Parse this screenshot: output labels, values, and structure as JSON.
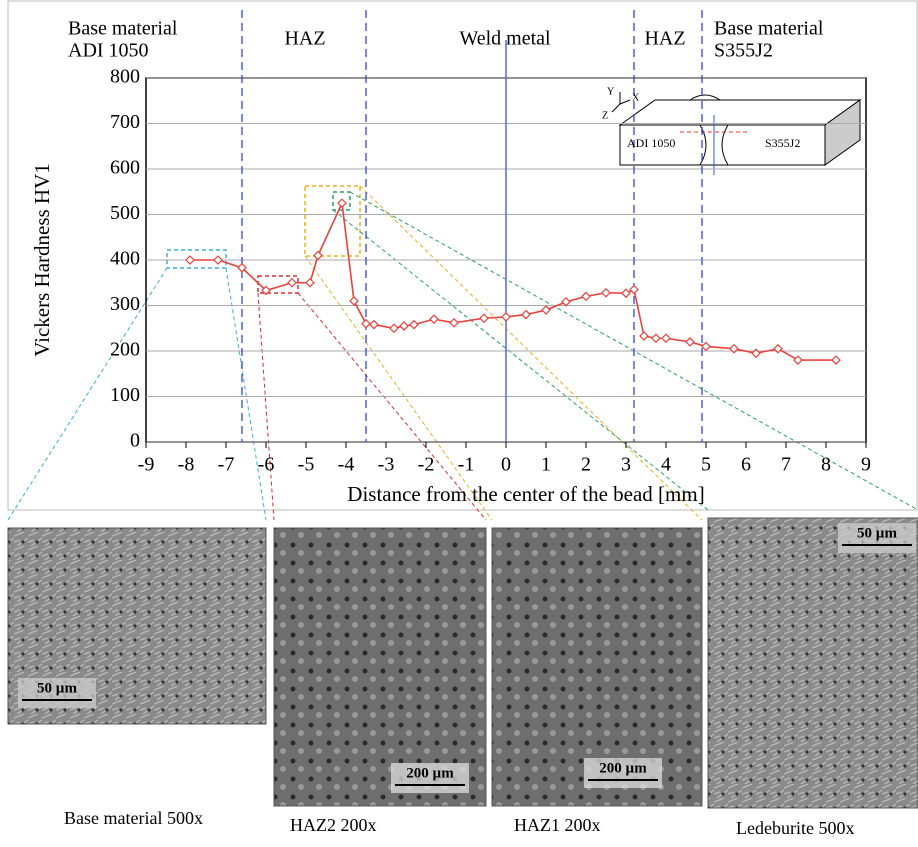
{
  "chart_data": {
    "type": "line",
    "x_label": "Distance from the center of the bead [mm]",
    "y_label": "Vickers Hardness HV1",
    "xlim": [
      -9,
      9
    ],
    "xticks": [
      -9,
      -8,
      -7,
      -6,
      -5,
      -4,
      -3,
      -2,
      -1,
      0,
      1,
      2,
      3,
      4,
      5,
      6,
      7,
      8,
      9
    ],
    "ylim": [
      0,
      800
    ],
    "yticks": [
      0,
      100,
      200,
      300,
      400,
      500,
      600,
      700,
      800
    ],
    "grid": true,
    "series": [
      {
        "color": "#e8413c",
        "x": [
          -7.9,
          -7.2,
          -6.6,
          -6.0,
          -5.35,
          -4.9,
          -4.7,
          -4.1,
          -3.8,
          -3.5,
          -3.3,
          -2.8,
          -2.55,
          -2.3,
          -1.8,
          -1.3,
          -0.55,
          0,
          0.5,
          1.0,
          1.5,
          2.0,
          2.5,
          3.0,
          3.2,
          3.45,
          3.75,
          4.0,
          4.6,
          5.0,
          5.7,
          6.25,
          6.8,
          7.3,
          8.25
        ],
        "values": [
          400,
          400,
          383,
          333,
          350,
          350,
          410,
          525,
          310,
          260,
          258,
          250,
          255,
          258,
          270,
          262,
          272,
          275,
          280,
          290,
          308,
          320,
          328,
          327,
          335,
          233,
          228,
          228,
          220,
          210,
          205,
          195,
          205,
          180,
          180
        ]
      }
    ],
    "boundaries": [
      -6.6,
      -3.5,
      3.2,
      4.9
    ],
    "center_line": 0,
    "regions": [
      [
        "Base material",
        "ADI 1050"
      ],
      [
        "HAZ"
      ],
      [
        "Weld metal"
      ],
      [
        "HAZ"
      ],
      [
        "Base material",
        "S355J2"
      ]
    ],
    "inset": {
      "axes": [
        "Y",
        "X",
        "Z"
      ],
      "left": "ADI 1050",
      "right": "S355J2"
    },
    "micrographs": [
      {
        "caption": "Base material 500x",
        "scale": "50 µm"
      },
      {
        "caption": "HAZ2 200x",
        "scale": "200 µm"
      },
      {
        "caption": "HAZ1 200x",
        "scale": "200 µm"
      },
      {
        "caption": "Ledeburite 500x",
        "scale": "50 µm"
      }
    ]
  }
}
